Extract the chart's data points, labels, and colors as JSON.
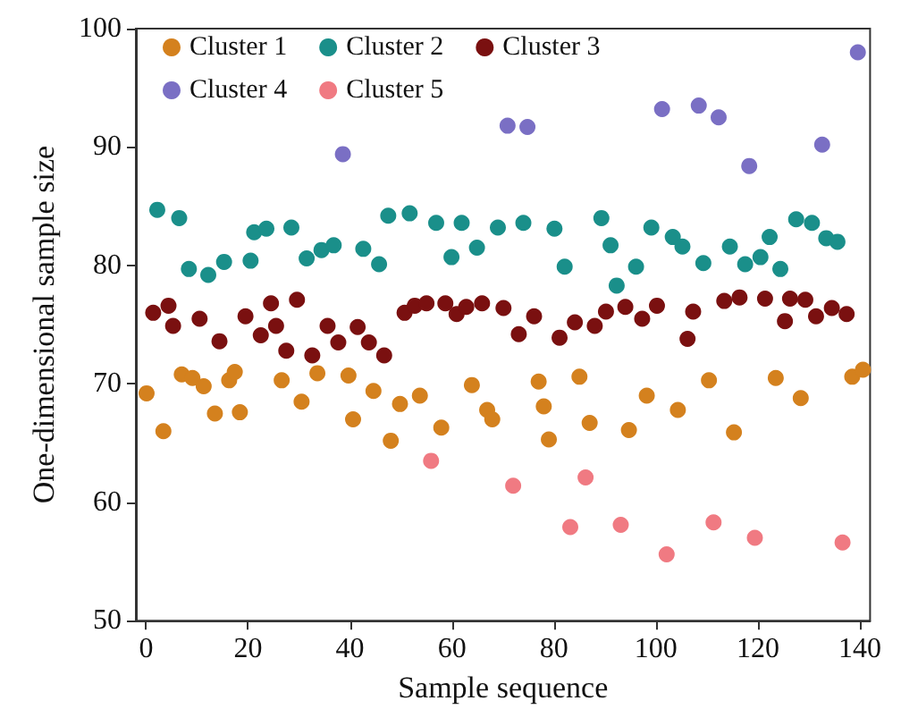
{
  "chart_data": {
    "type": "scatter",
    "xlabel": "Sample sequence",
    "ylabel": "One-dimensional sample size",
    "xlim": [
      -2,
      142
    ],
    "ylim": [
      50,
      100
    ],
    "xticks": [
      0,
      20,
      40,
      60,
      80,
      100,
      120,
      140
    ],
    "yticks": [
      50,
      60,
      70,
      80,
      90,
      100
    ],
    "grid": false,
    "legend": "top",
    "marker": "circle",
    "series": [
      {
        "name": "Cluster 1",
        "color": "#d4811e",
        "x": [
          0.1,
          3.4,
          7,
          9.1,
          11.3,
          13.5,
          16.3,
          17.4,
          18.4,
          26.6,
          30.5,
          33.6,
          39.7,
          40.6,
          44.6,
          48,
          49.8,
          53.7,
          57.9,
          63.9,
          66.9,
          67.9,
          77,
          78,
          79,
          85,
          87,
          94.7,
          98.2,
          104.3,
          110.4,
          115.3,
          123.5,
          128.4,
          138.5,
          140.6
        ],
        "values": [
          69.2,
          66,
          70.8,
          70.5,
          69.8,
          67.5,
          70.3,
          71,
          67.6,
          70.3,
          68.5,
          70.9,
          70.7,
          67,
          69.4,
          65.2,
          68.3,
          69,
          66.3,
          69.9,
          67.8,
          67,
          70.2,
          68.1,
          65.3,
          70.6,
          66.7,
          66.1,
          69,
          67.8,
          70.3,
          65.9,
          70.5,
          68.8,
          70.6,
          71.2
        ]
      },
      {
        "name": "Cluster 2",
        "color": "#1a8f8a",
        "x": [
          2.2,
          6.5,
          8.4,
          12.2,
          15.3,
          20.5,
          21.2,
          23.6,
          28.5,
          31.5,
          34.4,
          36.8,
          42.6,
          45.7,
          47.5,
          51.7,
          56.9,
          59.9,
          61.9,
          64.9,
          69,
          74,
          80.1,
          82.1,
          89.3,
          91.1,
          92.3,
          96.1,
          99.1,
          103.3,
          105.2,
          109.3,
          114.5,
          117.5,
          120.5,
          122.3,
          124.4,
          127.5,
          130.6,
          133.4,
          135.6
        ],
        "values": [
          84.7,
          84,
          79.7,
          79.2,
          80.3,
          80.4,
          82.8,
          83.1,
          83.2,
          80.6,
          81.3,
          81.7,
          81.4,
          80.1,
          84.2,
          84.4,
          83.6,
          80.7,
          83.6,
          81.5,
          83.2,
          83.6,
          83.1,
          79.9,
          84,
          81.7,
          78.3,
          79.9,
          83.2,
          82.4,
          81.6,
          80.2,
          81.6,
          80.1,
          80.7,
          82.4,
          79.7,
          83.9,
          83.6,
          82.3,
          82
        ]
      },
      {
        "name": "Cluster 3",
        "color": "#7a1010",
        "x": [
          1.4,
          4.4,
          5.3,
          10.5,
          14.4,
          19.5,
          22.5,
          24.5,
          25.5,
          27.5,
          29.6,
          32.6,
          35.6,
          37.7,
          41.5,
          43.7,
          46.7,
          50.7,
          52.7,
          55,
          58.7,
          60.9,
          62.8,
          65.9,
          70.1,
          73.1,
          76.1,
          81.1,
          84.1,
          88,
          90.2,
          94,
          97.3,
          100.2,
          106.2,
          107.3,
          113.4,
          116.4,
          121.4,
          125.3,
          126.3,
          129.3,
          131.4,
          134.5,
          137.4
        ],
        "values": [
          76,
          76.6,
          74.9,
          75.5,
          73.6,
          75.7,
          74.1,
          76.8,
          74.9,
          72.8,
          77.1,
          72.4,
          74.9,
          73.5,
          74.8,
          73.5,
          72.4,
          76,
          76.6,
          76.8,
          76.8,
          75.9,
          76.5,
          76.8,
          76.4,
          74.2,
          75.7,
          73.9,
          75.2,
          74.9,
          76.1,
          76.5,
          75.5,
          76.6,
          73.8,
          76.1,
          77,
          77.3,
          77.2,
          75.3,
          77.2,
          77.1,
          75.7,
          76.4,
          75.9
        ]
      },
      {
        "name": "Cluster 4",
        "color": "#7a6fc4",
        "x": [
          38.6,
          70.9,
          74.8,
          101.2,
          108.4,
          112.3,
          118.3,
          132.6,
          139.6
        ],
        "values": [
          89.4,
          91.8,
          91.7,
          93.2,
          93.5,
          92.5,
          88.4,
          90.2,
          98
        ]
      },
      {
        "name": "Cluster 5",
        "color": "#f07a82",
        "x": [
          55.9,
          72,
          83.2,
          86.2,
          93.1,
          102.1,
          111.3,
          119.4,
          136.6
        ],
        "values": [
          63.5,
          61.4,
          57.9,
          62.1,
          58.1,
          55.6,
          58.3,
          57,
          56.6
        ]
      }
    ]
  }
}
